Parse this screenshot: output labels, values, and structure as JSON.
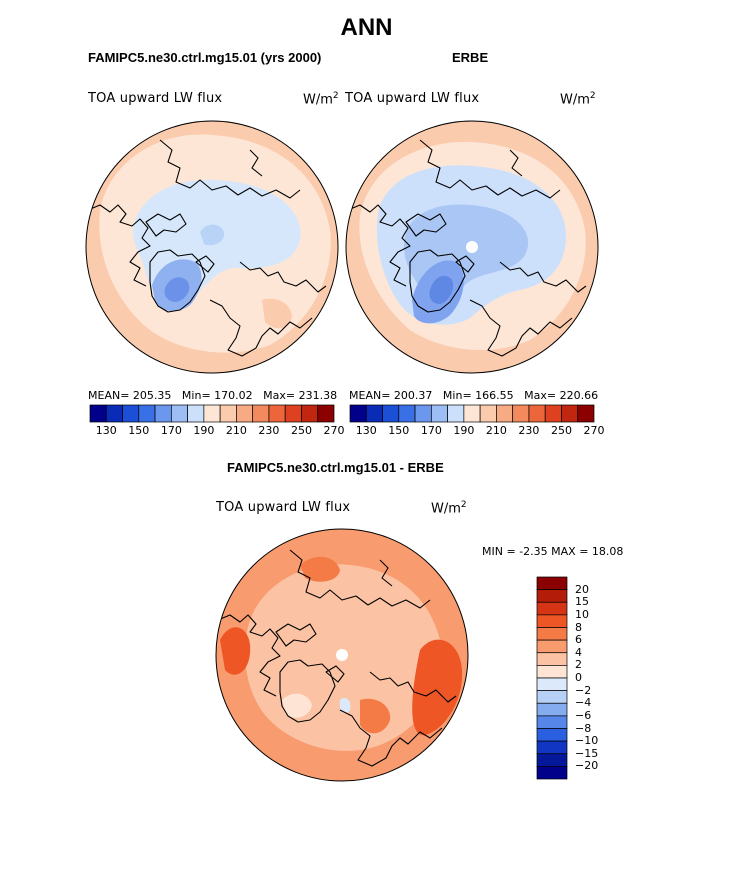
{
  "page": {
    "title": "ANN"
  },
  "panels": [
    {
      "id": "model",
      "case_title": "FAMIPC5.ne30.ctrl.mg15.01 (yrs 2000)",
      "variable": "TOA upward LW flux",
      "units_base": "W/m",
      "units_exp": "2",
      "stats": {
        "mean_label": "MEAN=",
        "mean": "205.35",
        "min_label": "Min=",
        "min": "170.02",
        "max_label": "Max=",
        "max": "231.38"
      }
    },
    {
      "id": "obs",
      "case_title": "ERBE",
      "variable": "TOA upward LW flux",
      "units_base": "W/m",
      "units_exp": "2",
      "stats": {
        "mean_label": "MEAN=",
        "mean": "200.37",
        "min_label": "Min=",
        "min": "166.55",
        "max_label": "Max=",
        "max": "220.66"
      }
    },
    {
      "id": "diff",
      "case_title": "FAMIPC5.ne30.ctrl.mg15.01 - ERBE",
      "variable": "TOA upward LW flux",
      "units_base": "W/m",
      "units_exp": "2",
      "stats": {
        "min_label": "MIN =",
        "min": "-2.35",
        "max_label": "MAX =",
        "max": "18.08"
      }
    }
  ],
  "chart_data": [
    {
      "type": "heatmap",
      "projection": "north polar stereographic",
      "title": "FAMIPC5.ne30.ctrl.mg15.01 (yrs 2000)",
      "variable": "TOA upward LW flux",
      "units": "W/m2",
      "mean": 205.35,
      "min": 170.02,
      "max": 231.38,
      "colorbar": {
        "orientation": "horizontal",
        "ticks": [
          "130",
          "150",
          "170",
          "190",
          "210",
          "230",
          "250",
          "270"
        ],
        "colors": [
          "#00008b",
          "#0a2bb5",
          "#1a4fd6",
          "#3a70e6",
          "#6b98ee",
          "#9dbdf5",
          "#cde0fb",
          "#fde6d6",
          "#fbcbae",
          "#f7ab84",
          "#f28a5e",
          "#ec653b",
          "#de4120",
          "#c02610",
          "#8b0000"
        ]
      },
      "regions": [
        {
          "description": "outer ring",
          "value": 225,
          "color": "#fbcbae"
        },
        {
          "description": "subpolar band",
          "value": 212,
          "color": "#fde6d6"
        },
        {
          "description": "central Arctic",
          "value": 195,
          "color": "#d6e7fb"
        },
        {
          "description": "Greenland interior",
          "value": 178,
          "color": "#8fb1f0"
        },
        {
          "description": "Greenland core",
          "value": 172,
          "color": "#6b92e8"
        }
      ]
    },
    {
      "type": "heatmap",
      "projection": "north polar stereographic",
      "title": "ERBE",
      "variable": "TOA upward LW flux",
      "units": "W/m2",
      "mean": 200.37,
      "min": 166.55,
      "max": 220.66,
      "colorbar": {
        "orientation": "horizontal",
        "ticks": [
          "130",
          "150",
          "170",
          "190",
          "210",
          "230",
          "250",
          "270"
        ],
        "colors": [
          "#00008b",
          "#0a2bb5",
          "#1a4fd6",
          "#3a70e6",
          "#6b98ee",
          "#9dbdf5",
          "#cde0fb",
          "#fde6d6",
          "#fbcbae",
          "#f7ab84",
          "#f28a5e",
          "#ec653b",
          "#de4120",
          "#c02610",
          "#8b0000"
        ]
      },
      "regions": [
        {
          "description": "outer ring",
          "value": 222,
          "color": "#fbcbae"
        },
        {
          "description": "subpolar band",
          "value": 208,
          "color": "#fde6d6"
        },
        {
          "description": "central Arctic",
          "value": 192,
          "color": "#cde0fb"
        },
        {
          "description": "high Arctic",
          "value": 185,
          "color": "#a9c6f5"
        },
        {
          "description": "Greenland core",
          "value": 170,
          "color": "#5f87e4"
        }
      ]
    },
    {
      "type": "heatmap",
      "projection": "north polar stereographic",
      "title": "FAMIPC5.ne30.ctrl.mg15.01 - ERBE",
      "variable": "TOA upward LW flux",
      "units": "W/m2",
      "min": -2.35,
      "max": 18.08,
      "colorbar": {
        "orientation": "vertical",
        "ticks": [
          "20",
          "15",
          "10",
          "8",
          "6",
          "4",
          "2",
          "0",
          "−2",
          "−4",
          "−6",
          "−8",
          "−10",
          "−15",
          "−20"
        ],
        "colors": [
          "#8b0000",
          "#b41c0a",
          "#d63515",
          "#ee5626",
          "#f47a46",
          "#f89c70",
          "#fbc3a4",
          "#fde4d4",
          "#dbe9fb",
          "#b6d0f6",
          "#86acf0",
          "#5686e8",
          "#2a5fdf",
          "#1236c4",
          "#06189a",
          "#00008b"
        ]
      },
      "regions": [
        {
          "description": "mid-latitude band",
          "value": 6,
          "color": "#f89c70"
        },
        {
          "description": "high-latitude warm patches",
          "value": 10,
          "color": "#ee5626"
        },
        {
          "description": "central Arctic",
          "value": 3,
          "color": "#fbc3a4"
        },
        {
          "description": "near-zero patches",
          "value": 1,
          "color": "#fde4d4"
        },
        {
          "description": "negative patches",
          "value": -2,
          "color": "#dbe9fb"
        }
      ]
    }
  ]
}
